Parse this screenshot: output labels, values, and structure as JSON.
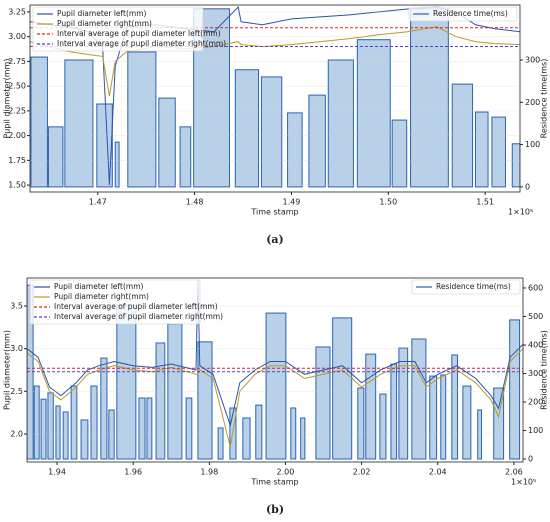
{
  "chart_data": [
    {
      "type": "combo",
      "caption": "(a)",
      "x_label": "Time stamp",
      "x_multiplier": "1×10⁵",
      "y_label": "Pupil diameter(mm)",
      "y2_label": "Residence time(ms)",
      "xlim": [
        1.463,
        1.5136
      ],
      "xticks": [
        1.47,
        1.48,
        1.49,
        {
          "value": 1.5,
          "label": "1.50"
        },
        1.51
      ],
      "ylim": [
        1.43,
        3.32
      ],
      "yticks": [
        {
          "value": 1.5,
          "label": "1.50"
        },
        1.75,
        {
          "value": 2.0,
          "label": "2.00"
        },
        2.25,
        {
          "value": 2.5,
          "label": "2.50"
        },
        2.75,
        {
          "value": 3.0,
          "label": "3.00"
        },
        3.25
      ],
      "y2lim": [
        -12,
        430
      ],
      "y2ticks": [
        0,
        100,
        200,
        300
      ],
      "legend_loc": "upper left",
      "series": [
        {
          "name": "Residence time(ms)",
          "kind": "bar",
          "axis": "y2",
          "color": "#b9d1e8",
          "edge_color": "#2a62b0",
          "legend_loc": "upper right",
          "start": [
            1.4631,
            1.4649,
            1.4666,
            1.4699,
            1.4718,
            1.4731,
            1.4763,
            1.4785,
            1.4799,
            1.4842,
            1.4869,
            1.4896,
            1.4918,
            1.4938,
            1.4968,
            1.5004,
            1.5023,
            1.5066,
            1.509,
            1.5107,
            1.5128
          ],
          "end": [
            1.4648,
            1.4664,
            1.4695,
            1.4715,
            1.4722,
            1.476,
            1.478,
            1.4796,
            1.4836,
            1.4866,
            1.489,
            1.4911,
            1.4935,
            1.4964,
            1.5002,
            1.5019,
            1.5062,
            1.5087,
            1.5103,
            1.5121,
            1.5136
          ],
          "values": [
            307,
            142,
            300,
            196,
            106,
            319,
            210,
            142,
            421,
            277,
            260,
            175,
            217,
            300,
            348,
            158,
            421,
            243,
            177,
            165,
            102
          ]
        },
        {
          "name": "Pupil diameter left(mm)",
          "kind": "line",
          "color": "#2a55a8",
          "x": [
            1.463,
            1.465,
            1.467,
            1.469,
            1.4705,
            1.4712,
            1.4718,
            1.473,
            1.476,
            1.479,
            1.482,
            1.4845,
            1.4848,
            1.487,
            1.49,
            1.493,
            1.496,
            1.499,
            1.502,
            1.505,
            1.507,
            1.509,
            1.511,
            1.5136
          ],
          "values": [
            3.15,
            3.12,
            3.1,
            3.05,
            2.9,
            1.5,
            2.7,
            3.1,
            3.12,
            3.08,
            3.05,
            3.3,
            3.15,
            3.12,
            3.18,
            3.2,
            3.22,
            3.25,
            3.28,
            3.3,
            3.25,
            3.12,
            3.08,
            3.05
          ]
        },
        {
          "name": "Pupil diameter right(mm)",
          "kind": "line",
          "color": "#b89a2a",
          "x": [
            1.463,
            1.465,
            1.467,
            1.469,
            1.4705,
            1.4712,
            1.4718,
            1.473,
            1.476,
            1.479,
            1.482,
            1.4845,
            1.4848,
            1.487,
            1.49,
            1.493,
            1.496,
            1.499,
            1.502,
            1.505,
            1.507,
            1.509,
            1.511,
            1.5136
          ],
          "values": [
            2.95,
            2.9,
            2.85,
            2.82,
            2.8,
            2.4,
            2.75,
            2.85,
            2.9,
            2.88,
            2.9,
            2.95,
            2.92,
            2.9,
            2.92,
            2.95,
            2.98,
            3.02,
            3.05,
            3.1,
            3.0,
            2.95,
            2.93,
            2.92
          ]
        },
        {
          "name": "Interval average of pupil diameter left(mm)",
          "kind": "hline",
          "color": "#d62728",
          "value": 3.09
        },
        {
          "name": "Interval average of pupil diameter right(mm)",
          "kind": "hline",
          "color": "#5a3fc0",
          "value": 2.9
        }
      ]
    },
    {
      "type": "combo",
      "caption": "(b)",
      "x_label": "Time stamp",
      "x_multiplier": "1×10⁵",
      "y_label": "Pupil diameter(mm)",
      "y2_label": "Residence time(ms)",
      "xlim": [
        1.9321,
        2.0624
      ],
      "xticks": [
        1.94,
        1.96,
        1.98,
        {
          "value": 2.0,
          "label": "2.00"
        },
        2.02,
        2.04,
        2.06
      ],
      "ylim": [
        1.672,
        3.828
      ],
      "yticks": [
        {
          "value": 2.0,
          "label": "2.0"
        },
        2.5,
        {
          "value": 3.0,
          "label": "3.0"
        },
        3.5
      ],
      "y2lim": [
        -10.5,
        635
      ],
      "y2ticks": [
        0,
        100,
        200,
        300,
        400,
        500,
        600
      ],
      "legend_loc": "upper left",
      "series": [
        {
          "name": "Residence time(ms)",
          "kind": "bar",
          "axis": "y2",
          "color": "#b9d1e8",
          "edge_color": "#2a62b0",
          "legend_loc": "upper right",
          "start": [
            1.9321,
            1.934,
            1.9358,
            1.9376,
            1.9397,
            1.9416,
            1.9437,
            1.9463,
            1.9489,
            1.9515,
            1.9536,
            1.9557,
            1.9615,
            1.9636,
            1.966,
            1.9691,
            1.9739,
            1.977,
            1.9823,
            1.9854,
            1.9888,
            1.9922,
            1.9949,
            2.0014,
            2.004,
            2.008,
            2.0124,
            2.019,
            2.0211,
            2.0248,
            2.0277,
            2.0298,
            2.0332,
            2.0379,
            2.0408,
            2.0437,
            2.0466,
            2.0505,
            2.0547,
            2.0589
          ],
          "end": [
            1.9337,
            1.9353,
            1.9371,
            1.939,
            1.9408,
            1.9429,
            1.9452,
            1.9481,
            1.9505,
            1.9531,
            1.955,
            1.9607,
            1.9631,
            1.9649,
            1.9683,
            1.9728,
            1.9754,
            1.9807,
            1.9836,
            1.987,
            1.9907,
            1.9938,
            2.0001,
            2.0027,
            2.0051,
            2.0117,
            2.0174,
            2.0206,
            2.0237,
            2.0264,
            2.0292,
            2.0321,
            2.0369,
            2.0397,
            2.0421,
            2.0452,
            2.0487,
            2.0515,
            2.0573,
            2.0615
          ],
          "values": [
            610,
            256,
            210,
            232,
            186,
            165,
            256,
            137,
            256,
            354,
            172,
            540,
            214,
            214,
            407,
            474,
            214,
            411,
            109,
            179,
            144,
            189,
            512,
            179,
            144,
            393,
            495,
            249,
            368,
            228,
            333,
            389,
            421,
            291,
            295,
            365,
            256,
            172,
            249,
            488
          ]
        },
        {
          "name": "Pupil diameter left(mm)",
          "kind": "line",
          "color": "#2a55a8",
          "x": [
            1.9321,
            1.935,
            1.938,
            1.941,
            1.945,
            1.948,
            1.951,
            1.955,
            1.96,
            1.965,
            1.97,
            1.9765,
            1.977,
            1.9775,
            1.981,
            1.9855,
            1.988,
            1.992,
            1.996,
            2.0,
            2.005,
            2.01,
            2.015,
            2.02,
            2.025,
            2.03,
            2.034,
            2.037,
            2.04,
            2.045,
            2.05,
            2.054,
            2.056,
            2.059,
            2.0624
          ],
          "values": [
            3.0,
            2.9,
            2.55,
            2.45,
            2.6,
            2.75,
            2.8,
            2.85,
            2.8,
            2.78,
            2.82,
            2.75,
            3.8,
            2.8,
            2.7,
            2.1,
            2.6,
            2.75,
            2.85,
            2.85,
            2.7,
            2.75,
            2.8,
            2.6,
            2.75,
            2.85,
            2.85,
            2.6,
            2.7,
            2.8,
            2.65,
            2.45,
            2.3,
            2.9,
            3.05
          ]
        },
        {
          "name": "Pupil diameter right(mm)",
          "kind": "line",
          "color": "#b89a2a",
          "x": [
            1.9321,
            1.935,
            1.938,
            1.941,
            1.945,
            1.948,
            1.951,
            1.955,
            1.96,
            1.965,
            1.97,
            1.9765,
            1.977,
            1.9775,
            1.981,
            1.9855,
            1.988,
            1.992,
            1.996,
            2.0,
            2.005,
            2.01,
            2.015,
            2.02,
            2.025,
            2.03,
            2.034,
            2.037,
            2.04,
            2.045,
            2.05,
            2.054,
            2.056,
            2.059,
            2.0624
          ],
          "values": [
            2.95,
            2.85,
            2.5,
            2.4,
            2.55,
            2.7,
            2.75,
            2.8,
            2.75,
            2.73,
            2.78,
            2.7,
            2.7,
            2.75,
            2.65,
            1.85,
            2.5,
            2.7,
            2.8,
            2.8,
            2.65,
            2.7,
            2.75,
            2.55,
            2.7,
            2.8,
            2.8,
            2.55,
            2.65,
            2.75,
            2.6,
            2.4,
            2.2,
            2.85,
            3.0
          ]
        },
        {
          "name": "Interval average of pupil diameter left(mm)",
          "kind": "hline",
          "color": "#d62728",
          "value": 2.77
        },
        {
          "name": "Interval average of pupil diameter right(mm)",
          "kind": "hline",
          "color": "#5a3fc0",
          "value": 2.73
        }
      ]
    }
  ]
}
